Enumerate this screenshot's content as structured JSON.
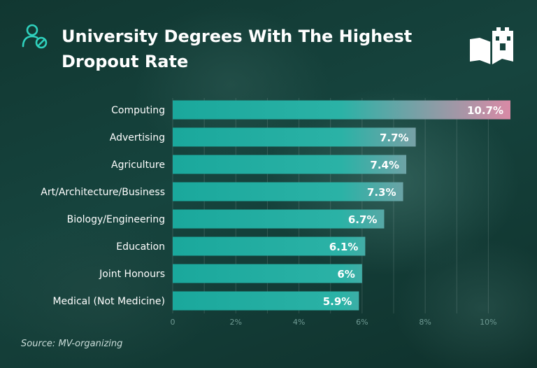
{
  "title": "University Degrees With The Highest Dropout Rate",
  "source": "Source: MV-organizing",
  "icons": {
    "header_icon": "user-blocked-icon",
    "logo": "book-castle-logo"
  },
  "colors": {
    "background": "#16443e",
    "bar_start": "#1aa89c",
    "bar_end": "#d98aa6",
    "accent": "#2fd1bd"
  },
  "chart_data": {
    "type": "bar",
    "orientation": "horizontal",
    "categories": [
      "Computing",
      "Advertising",
      "Agriculture",
      "Art/Architecture/Business",
      "Biology/Engineering",
      "Education",
      "Joint Honours",
      "Medical (Not Medicine)"
    ],
    "values": [
      10.7,
      7.7,
      7.4,
      7.3,
      6.7,
      6.1,
      6,
      5.9
    ],
    "value_labels": [
      "10.7%",
      "7.7%",
      "7.4%",
      "7.3%",
      "6.7%",
      "6.1%",
      "6%",
      "5.9%"
    ],
    "x_ticks": [
      0,
      2,
      4,
      6,
      8,
      10
    ],
    "x_tick_labels": [
      "0",
      "2%",
      "4%",
      "6%",
      "8%",
      "10%"
    ],
    "xlim": [
      0,
      10.7
    ],
    "grid": true,
    "legend": "none"
  }
}
